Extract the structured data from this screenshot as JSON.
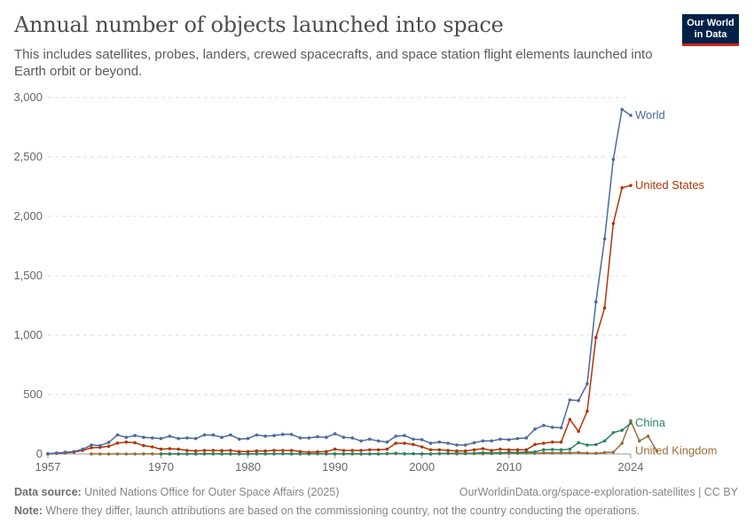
{
  "header": {
    "title": "Annual number of objects launched into space",
    "subtitle": "This includes satellites, probes, landers, crewed spacecrafts, and space station flight elements launched into Earth orbit or beyond.",
    "logo_line1": "Our World",
    "logo_line2": "in Data"
  },
  "footer": {
    "source_label": "Data source:",
    "source_text": "United Nations Office for Outer Space Affairs (2025)",
    "credit": "OurWorldinData.org/space-exploration-satellites | CC BY",
    "note_label": "Note:",
    "note_text": "Where they differ, launch attributions are based on the commissioning country, not the country conducting the operations."
  },
  "chart_data": {
    "type": "line",
    "title": "Annual number of objects launched into space",
    "ylim": [
      0,
      3000
    ],
    "xlim": [
      1957,
      2024
    ],
    "y_ticks": [
      0,
      500,
      1000,
      1500,
      2000,
      2500,
      3000
    ],
    "y_tick_labels": [
      "0",
      "500",
      "1,000",
      "1,500",
      "2,000",
      "2,500",
      "3,000"
    ],
    "x_ticks": [
      1957,
      1970,
      1980,
      1990,
      2000,
      2010,
      2024
    ],
    "x_tick_labels": [
      "1957",
      "1970",
      "1980",
      "1990",
      "2000",
      "2010",
      "2024"
    ],
    "grid": "horizontal",
    "colors": {
      "World": "#4c6a9c",
      "United States": "#b13507",
      "China": "#2c8465",
      "United Kingdom": "#996d39"
    },
    "series": [
      {
        "name": "World",
        "x_start": 1957,
        "values": [
          2,
          8,
          14,
          20,
          40,
          75,
          70,
          98,
          160,
          140,
          155,
          140,
          135,
          130,
          150,
          130,
          135,
          130,
          160,
          160,
          140,
          160,
          125,
          130,
          160,
          150,
          155,
          165,
          165,
          135,
          135,
          145,
          140,
          170,
          140,
          135,
          110,
          125,
          110,
          100,
          150,
          155,
          125,
          120,
          90,
          100,
          90,
          75,
          75,
          95,
          110,
          110,
          125,
          120,
          130,
          135,
          210,
          240,
          225,
          220,
          455,
          450,
          590,
          1280,
          1810,
          2480,
          2900,
          2850
        ]
      },
      {
        "name": "United States",
        "x_start": 1957,
        "values": [
          0,
          5,
          10,
          16,
          30,
          52,
          55,
          65,
          92,
          100,
          95,
          70,
          60,
          40,
          45,
          40,
          30,
          25,
          30,
          30,
          28,
          30,
          20,
          20,
          25,
          25,
          30,
          30,
          30,
          20,
          15,
          18,
          20,
          40,
          30,
          30,
          30,
          35,
          35,
          40,
          90,
          90,
          80,
          60,
          35,
          35,
          30,
          25,
          25,
          35,
          45,
          30,
          40,
          35,
          35,
          35,
          80,
          90,
          100,
          100,
          290,
          190,
          360,
          980,
          1230,
          1940,
          2240,
          2260
        ]
      },
      {
        "name": "China",
        "x_start": 1970,
        "values": [
          1,
          1,
          0,
          0,
          1,
          3,
          2,
          1,
          1,
          0,
          0,
          3,
          1,
          1,
          2,
          1,
          2,
          1,
          2,
          1,
          2,
          1,
          1,
          0,
          1,
          0,
          3,
          6,
          1,
          2,
          1,
          1,
          4,
          5,
          6,
          5,
          6,
          11,
          10,
          10,
          15,
          12,
          17,
          18,
          36,
          38,
          35,
          40,
          95,
          75,
          78,
          110,
          180,
          200,
          260
        ]
      },
      {
        "name": "United Kingdom",
        "x_start": 1962,
        "values": [
          1,
          0,
          0,
          1,
          0,
          0,
          1,
          1,
          0,
          1,
          1,
          1,
          1,
          0,
          1,
          1,
          1,
          2,
          0,
          0,
          1,
          2,
          2,
          1,
          1,
          2,
          2,
          1,
          1,
          1,
          2,
          1,
          1,
          1,
          2,
          3,
          3,
          2,
          1,
          1,
          2,
          3,
          1,
          2,
          3,
          2,
          3,
          5,
          7,
          6,
          8,
          6,
          9,
          8,
          10,
          10,
          12,
          7,
          6,
          12,
          15,
          90,
          280,
          110,
          150,
          25
        ]
      }
    ],
    "series_labels": [
      {
        "name": "World",
        "text": "World",
        "y": 2850
      },
      {
        "name": "United States",
        "text": "United States",
        "y": 2260
      },
      {
        "name": "China",
        "text": "China",
        "y": 260
      },
      {
        "name": "United Kingdom",
        "text": "United Kingdom",
        "y": 25
      }
    ]
  }
}
